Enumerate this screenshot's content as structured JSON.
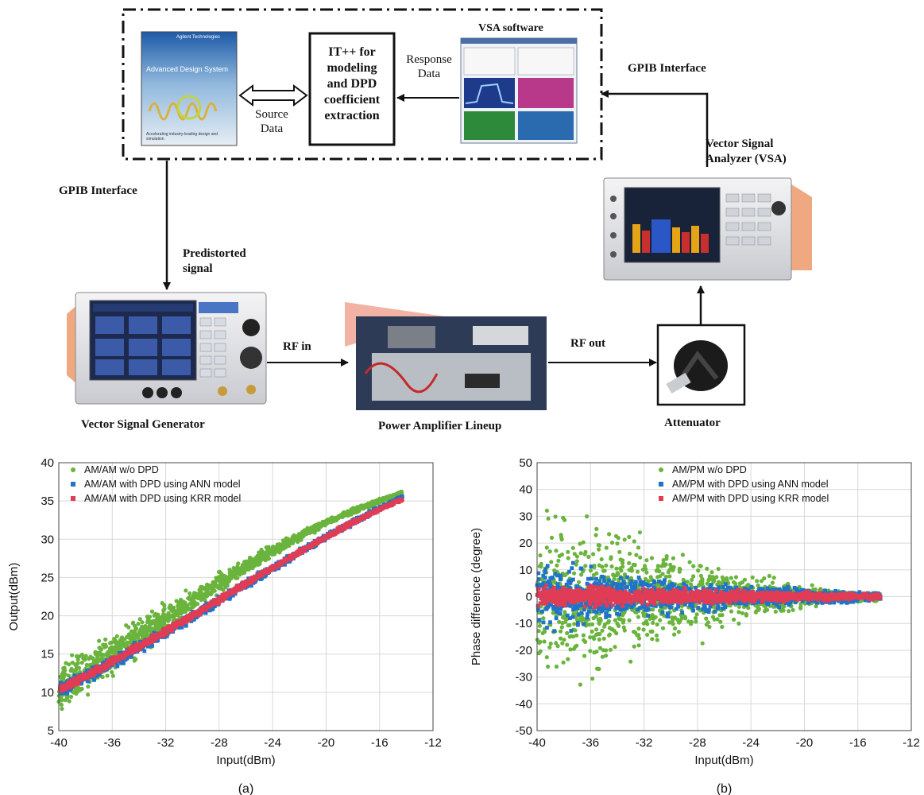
{
  "diagram": {
    "ads_box": {
      "brand": "Agilent Technologies",
      "title": "Advanced Design System",
      "caption": "Accelerating industry-leading design and simulation"
    },
    "itpp_box": {
      "lines": [
        "IT++ for",
        "modeling",
        "and DPD",
        "coefficient",
        "extraction"
      ]
    },
    "vsa_software": {
      "label": "VSA software"
    },
    "source_data": [
      "Source",
      "Data"
    ],
    "response_data": [
      "Response",
      "Data"
    ],
    "gpib_left": "GPIB Interface",
    "gpib_right": "GPIB Interface",
    "predistorted": [
      "Predistorted",
      "signal"
    ],
    "vsa": [
      "Vector Signal",
      "Analyzer (VSA)"
    ],
    "rf_in": "RF in",
    "rf_out": "RF out",
    "vsg_label": "Vector Signal Generator",
    "pa_label": "Power Amplifier Lineup",
    "att_label": "Attenuator"
  },
  "chart_data": [
    {
      "type": "scatter",
      "panel": "(a)",
      "xlabel": "Input(dBm)",
      "ylabel": "Output(dBm)",
      "xlim": [
        -40,
        -12
      ],
      "ylim": [
        5,
        40
      ],
      "xticks": [
        -40,
        -36,
        -32,
        -28,
        -24,
        -20,
        -16,
        -12
      ],
      "yticks": [
        5,
        10,
        15,
        20,
        25,
        30,
        35,
        40
      ],
      "grid": true,
      "legend": "top-left",
      "series": [
        {
          "name": "AM/AM w/o DPD",
          "color": "#6ab43e",
          "marker": "circle",
          "x": [
            -40,
            -38,
            -36,
            -34,
            -32,
            -30,
            -28,
            -26,
            -24,
            -22,
            -20,
            -18,
            -16,
            -14.3
          ],
          "y": [
            10.5,
            12.8,
            15.0,
            17.3,
            19.6,
            22.0,
            24.3,
            26.4,
            28.5,
            30.4,
            32.2,
            33.7,
            35.0,
            36.1
          ],
          "spread": [
            3.5,
            3.5,
            3.0,
            2.5,
            2.0,
            1.6,
            1.3,
            1.0,
            0.8,
            0.6,
            0.5,
            0.4,
            0.3,
            0.2
          ]
        },
        {
          "name": "AM/AM with DPD using ANN model",
          "color": "#1f73c9",
          "marker": "square",
          "x": [
            -40,
            -38,
            -36,
            -34,
            -32,
            -30,
            -28,
            -26,
            -24,
            -22,
            -20,
            -18,
            -16,
            -14.3
          ],
          "y": [
            10.2,
            12.0,
            13.9,
            15.9,
            17.9,
            19.9,
            22.0,
            24.1,
            26.2,
            28.3,
            30.3,
            32.2,
            34.0,
            35.5
          ],
          "spread": [
            1.0,
            0.9,
            0.8,
            0.8,
            0.7,
            0.7,
            0.6,
            0.6,
            0.5,
            0.5,
            0.4,
            0.4,
            0.3,
            0.3
          ]
        },
        {
          "name": "AM/AM with DPD using KRR model",
          "color": "#e03c55",
          "marker": "square",
          "x": [
            -40,
            -38,
            -36,
            -34,
            -32,
            -30,
            -28,
            -26,
            -24,
            -22,
            -20,
            -18,
            -16,
            -14.3
          ],
          "y": [
            10.3,
            12.1,
            14.0,
            16.0,
            18.0,
            20.0,
            22.1,
            24.2,
            26.3,
            28.3,
            30.3,
            32.2,
            33.9,
            35.2
          ],
          "spread": [
            0.6,
            0.6,
            0.5,
            0.5,
            0.5,
            0.4,
            0.4,
            0.4,
            0.3,
            0.3,
            0.3,
            0.3,
            0.2,
            0.2
          ]
        }
      ]
    },
    {
      "type": "scatter",
      "panel": "(b)",
      "xlabel": "Input(dBm)",
      "ylabel": "Phase difference (degree)",
      "xlim": [
        -40,
        -12
      ],
      "ylim": [
        -50,
        50
      ],
      "xticks": [
        -40,
        -36,
        -32,
        -28,
        -24,
        -20,
        -16,
        -12
      ],
      "yticks": [
        -50,
        -40,
        -30,
        -20,
        -10,
        0,
        10,
        20,
        30,
        40,
        50
      ],
      "grid": true,
      "legend": "top-right",
      "series": [
        {
          "name": "AM/PM w/o DPD",
          "color": "#6ab43e",
          "marker": "circle",
          "x": [
            -40,
            -38,
            -36,
            -34,
            -32,
            -30,
            -28,
            -26,
            -24,
            -22,
            -20,
            -18,
            -16,
            -14.3
          ],
          "y": [
            0,
            0,
            0,
            0,
            0,
            0,
            0,
            0,
            0,
            0,
            0,
            0,
            0,
            0
          ],
          "spread": [
            30,
            32,
            30,
            25,
            20,
            17,
            14,
            11,
            8,
            6,
            4,
            3,
            2,
            1.5
          ]
        },
        {
          "name": "AM/PM with DPD using ANN model",
          "color": "#1f73c9",
          "marker": "square",
          "x": [
            -40,
            -38,
            -36,
            -34,
            -32,
            -30,
            -28,
            -26,
            -24,
            -22,
            -20,
            -18,
            -16,
            -14.3
          ],
          "y": [
            0,
            0,
            0,
            0,
            0,
            0,
            0,
            0,
            0,
            0,
            0,
            0,
            0,
            0
          ],
          "spread": [
            12,
            11,
            10,
            9,
            8,
            7,
            6,
            5,
            4,
            3.5,
            3,
            2.5,
            2,
            1.5
          ]
        },
        {
          "name": "AM/PM with DPD using KRR model",
          "color": "#e03c55",
          "marker": "square",
          "x": [
            -40,
            -38,
            -36,
            -34,
            -32,
            -30,
            -28,
            -26,
            -24,
            -22,
            -20,
            -18,
            -16,
            -14.3
          ],
          "y": [
            0,
            0,
            0,
            0,
            0,
            0,
            0,
            0,
            0,
            0,
            0,
            0,
            0,
            0
          ],
          "spread": [
            4,
            4,
            3.5,
            3.5,
            3,
            3,
            2.8,
            2.5,
            2.2,
            2,
            1.8,
            1.5,
            1.2,
            1
          ]
        }
      ]
    }
  ]
}
